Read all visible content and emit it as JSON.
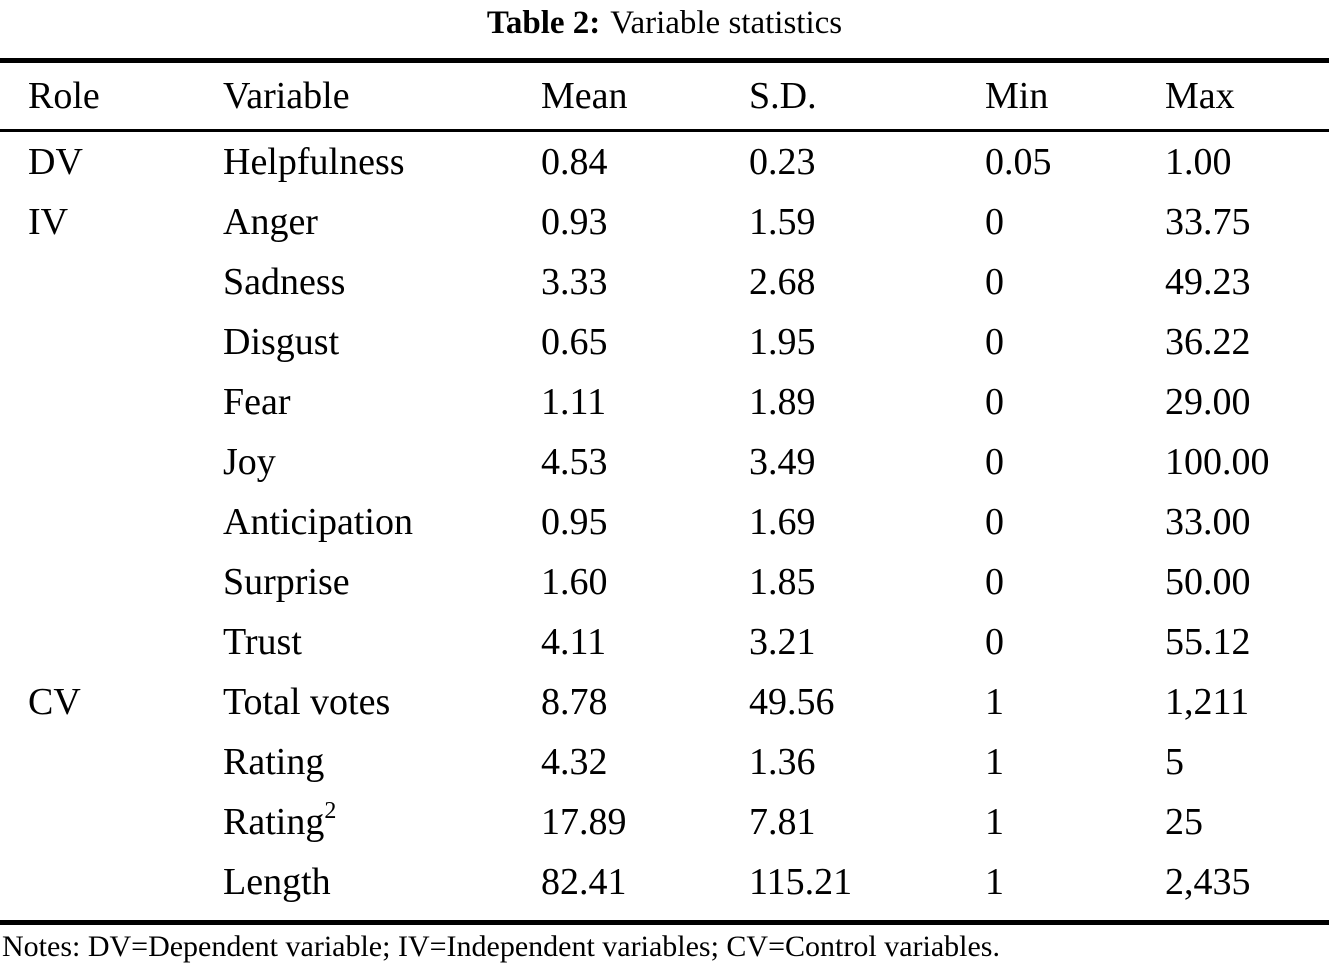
{
  "page": {
    "background": "#ffffff",
    "text_color": "#000000",
    "rule_color": "#000000"
  },
  "title": {
    "label": "Table 2:",
    "text": "Variable statistics"
  },
  "table": {
    "headers": [
      "Role",
      "Variable",
      "Mean",
      "S.D.",
      "Min",
      "Max"
    ],
    "rows": [
      {
        "role": "DV",
        "variable": "Helpfulness",
        "mean": "0.84",
        "sd": "0.23",
        "min": "0.05",
        "max": "1.00"
      },
      {
        "role": "IV",
        "variable": "Anger",
        "mean": "0.93",
        "sd": "1.59",
        "min": "0",
        "max": "33.75"
      },
      {
        "role": "",
        "variable": "Sadness",
        "mean": "3.33",
        "sd": "2.68",
        "min": "0",
        "max": "49.23"
      },
      {
        "role": "",
        "variable": "Disgust",
        "mean": "0.65",
        "sd": "1.95",
        "min": "0",
        "max": "36.22"
      },
      {
        "role": "",
        "variable": "Fear",
        "mean": "1.11",
        "sd": "1.89",
        "min": "0",
        "max": "29.00"
      },
      {
        "role": "",
        "variable": "Joy",
        "mean": "4.53",
        "sd": "3.49",
        "min": "0",
        "max": "100.00"
      },
      {
        "role": "",
        "variable": "Anticipation",
        "mean": "0.95",
        "sd": "1.69",
        "min": "0",
        "max": "33.00"
      },
      {
        "role": "",
        "variable": "Surprise",
        "mean": "1.60",
        "sd": "1.85",
        "min": "0",
        "max": "50.00"
      },
      {
        "role": "",
        "variable": "Trust",
        "mean": "4.11",
        "sd": "3.21",
        "min": "0",
        "max": "55.12"
      },
      {
        "role": "CV",
        "variable": "Total votes",
        "mean": "8.78",
        "sd": "49.56",
        "min": "1",
        "max": "1,211"
      },
      {
        "role": "",
        "variable": "Rating",
        "mean": "4.32",
        "sd": "1.36",
        "min": "1",
        "max": "5"
      },
      {
        "role": "",
        "variable": "Rating",
        "variable_sup": "2",
        "mean": "17.89",
        "sd": "7.81",
        "min": "1",
        "max": "25"
      },
      {
        "role": "",
        "variable": "Length",
        "mean": "82.41",
        "sd": "115.21",
        "min": "1",
        "max": "2,435"
      }
    ]
  },
  "notes": "Notes: DV=Dependent variable; IV=Independent variables; CV=Control variables."
}
